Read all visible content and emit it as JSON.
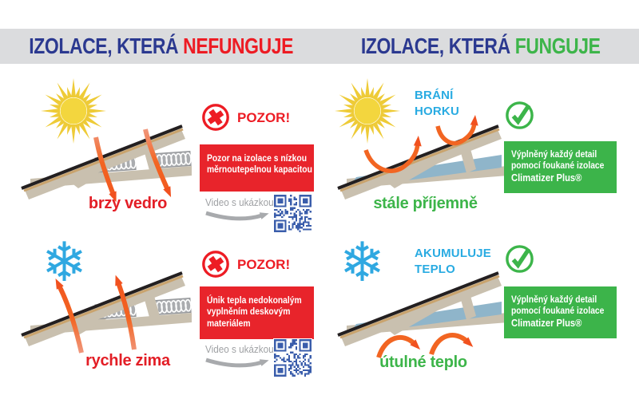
{
  "header": {
    "left": {
      "prefix": "IZOLACE, KTERÁ ",
      "highlight": "NEFUNGUJE"
    },
    "right": {
      "prefix": "IZOLACE, KTERÁ ",
      "highlight": "FUNGUJE"
    }
  },
  "panels": {
    "bad_summer": {
      "caption": "brzy vedro",
      "alert": "POZOR!",
      "message_lines": [
        "Pozor na izolace s nízkou",
        "měrnoutepelnou kapacitou"
      ],
      "video_label": "Video s ukázkou"
    },
    "bad_winter": {
      "caption": "rychle zima",
      "alert": "POZOR!",
      "message_lines": [
        "Únik tepla nedokonalým",
        "vyplněním deskovým",
        "materiálem"
      ],
      "video_label": "Video s ukázkou"
    },
    "good_summer": {
      "heading": "BRÁNÍ HORKU",
      "caption": "stále příjemně",
      "message_lines": [
        "Výplněný každý detail",
        "pomocí foukané izolace"
      ],
      "brand": "Climatizer Plus®"
    },
    "good_winter": {
      "heading": "AKUMULUJE TEPLO",
      "caption": "útulné teplo",
      "message_lines": [
        "Výplněný každý detail",
        "pomocí foukané izolace"
      ],
      "brand": "Climatizer Plus®"
    }
  },
  "colors": {
    "brand_blue": "#2b3990",
    "alert_red": "#ed1c24",
    "success_green": "#3db54a",
    "info_blue": "#29abe2",
    "arrow_orange": "#f26522",
    "wood_tan": "#c9c0af",
    "insulation_blue": "#8fb5ca",
    "qr_blue": "#3a5dab",
    "band_gray": "#dbdcde"
  }
}
